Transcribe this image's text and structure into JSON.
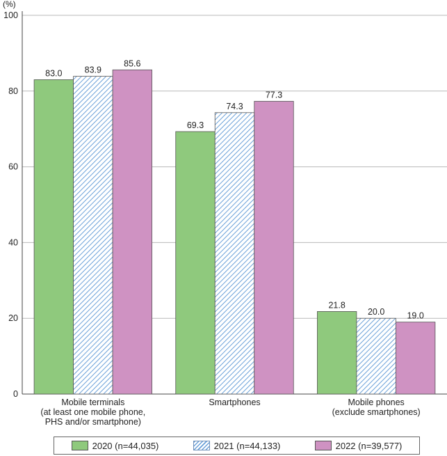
{
  "chart_data": {
    "type": "bar",
    "unit_label": "(%)",
    "ylim": [
      0,
      100
    ],
    "yticks": [
      0,
      20,
      40,
      60,
      80,
      100
    ],
    "grid": true,
    "legend_position": "bottom",
    "categories": [
      [
        "Mobile terminals",
        "(at least one mobile phone,",
        "PHS and/or smartphone)"
      ],
      [
        "Smartphones"
      ],
      [
        "Mobile phones",
        "(exclude smartphones)"
      ]
    ],
    "series": [
      {
        "name": "2020",
        "legend": "2020  (n=44,035)",
        "color": "#8fc97d",
        "pattern": "solid",
        "values": [
          83.0,
          69.3,
          21.8
        ]
      },
      {
        "name": "2021",
        "legend": "2021  (n=44,133)",
        "color": "#6aa0d8",
        "pattern": "hatched",
        "values": [
          83.9,
          74.3,
          20.0
        ]
      },
      {
        "name": "2022",
        "legend": "2022  (n=39,577)",
        "color": "#cf92c2",
        "pattern": "solid",
        "values": [
          85.6,
          77.3,
          19.0
        ]
      }
    ]
  }
}
